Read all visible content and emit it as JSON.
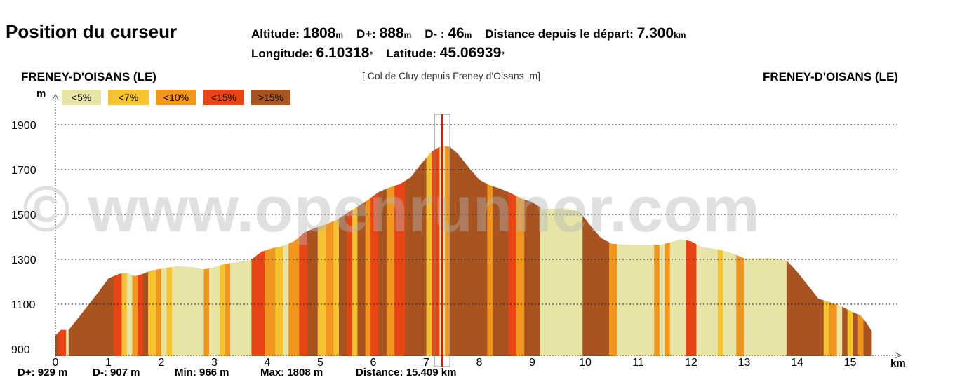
{
  "panel": {
    "title": "Position du curseur",
    "altitude_label": "Altitude:",
    "altitude_value": "1808",
    "altitude_unit": "m",
    "dplus_label": "D+:",
    "dplus_value": "888",
    "dplus_unit": "m",
    "dminus_label": "D- :",
    "dminus_value": "46",
    "dminus_unit": "m",
    "distance_label": "Distance depuis le départ:",
    "distance_value": "7.300",
    "distance_unit": "km",
    "longitude_label": "Longitude:",
    "longitude_value": "6.10318",
    "longitude_unit": "°",
    "latitude_label": "Latitude:",
    "latitude_value": "45.06939",
    "latitude_unit": "°"
  },
  "start_place": "FRENEY-D'OISANS (LE)",
  "end_place": "FRENEY-D'OISANS (LE)",
  "route_name": "[ Col de Cluy depuis Freney d'Oisans_m]",
  "watermark": "© www.openrunner.com",
  "legend": [
    {
      "label": "<5%",
      "color": "#e8e4a8"
    },
    {
      "label": "<7%",
      "color": "#f5c232"
    },
    {
      "label": "<10%",
      "color": "#f0961e"
    },
    {
      "label": "<15%",
      "color": "#e84414"
    },
    {
      "label": ">15%",
      "color": "#a85420"
    }
  ],
  "footer": {
    "dplus": "D+: 929 m",
    "dminus": "D-: 907 m",
    "min": "Min: 966 m",
    "max": "Max: 1808 m",
    "distance": "Distance: 15.409 km"
  },
  "chart_data": {
    "type": "area",
    "xlabel": "km",
    "ylabel": "m",
    "xlim": [
      0,
      15.8
    ],
    "ylim": [
      880,
      2000
    ],
    "y_ticks": [
      900,
      1100,
      1300,
      1500,
      1700,
      1900
    ],
    "x_ticks": [
      0,
      1,
      2,
      3,
      4,
      5,
      6,
      7,
      8,
      9,
      10,
      11,
      12,
      13,
      14,
      15
    ],
    "grid": "horizontal-dotted",
    "cursor_km": 7.3,
    "profile": [
      [
        0.0,
        960
      ],
      [
        0.1,
        985
      ],
      [
        0.25,
        985
      ],
      [
        0.5,
        1060
      ],
      [
        0.8,
        1150
      ],
      [
        1.0,
        1215
      ],
      [
        1.2,
        1235
      ],
      [
        1.35,
        1240
      ],
      [
        1.5,
        1225
      ],
      [
        1.65,
        1235
      ],
      [
        1.8,
        1250
      ],
      [
        2.0,
        1258
      ],
      [
        2.3,
        1270
      ],
      [
        2.6,
        1265
      ],
      [
        2.8,
        1255
      ],
      [
        3.0,
        1265
      ],
      [
        3.2,
        1280
      ],
      [
        3.5,
        1290
      ],
      [
        3.7,
        1300
      ],
      [
        3.9,
        1335
      ],
      [
        4.1,
        1350
      ],
      [
        4.3,
        1360
      ],
      [
        4.5,
        1380
      ],
      [
        4.7,
        1420
      ],
      [
        4.9,
        1440
      ],
      [
        5.1,
        1455
      ],
      [
        5.3,
        1475
      ],
      [
        5.5,
        1505
      ],
      [
        5.7,
        1535
      ],
      [
        5.9,
        1565
      ],
      [
        6.1,
        1600
      ],
      [
        6.3,
        1620
      ],
      [
        6.5,
        1635
      ],
      [
        6.7,
        1665
      ],
      [
        6.9,
        1725
      ],
      [
        7.1,
        1780
      ],
      [
        7.3,
        1808
      ],
      [
        7.45,
        1800
      ],
      [
        7.6,
        1770
      ],
      [
        7.8,
        1710
      ],
      [
        8.0,
        1655
      ],
      [
        8.2,
        1630
      ],
      [
        8.4,
        1615
      ],
      [
        8.6,
        1595
      ],
      [
        8.8,
        1570
      ],
      [
        9.0,
        1555
      ],
      [
        9.2,
        1525
      ],
      [
        9.4,
        1525
      ],
      [
        9.7,
        1525
      ],
      [
        9.9,
        1510
      ],
      [
        10.1,
        1450
      ],
      [
        10.3,
        1395
      ],
      [
        10.5,
        1370
      ],
      [
        10.8,
        1365
      ],
      [
        11.1,
        1365
      ],
      [
        11.4,
        1365
      ],
      [
        11.6,
        1375
      ],
      [
        11.8,
        1390
      ],
      [
        12.0,
        1380
      ],
      [
        12.2,
        1355
      ],
      [
        12.5,
        1345
      ],
      [
        12.8,
        1325
      ],
      [
        13.0,
        1305
      ],
      [
        13.3,
        1305
      ],
      [
        13.6,
        1305
      ],
      [
        13.8,
        1295
      ],
      [
        14.0,
        1245
      ],
      [
        14.2,
        1185
      ],
      [
        14.4,
        1125
      ],
      [
        14.6,
        1110
      ],
      [
        14.8,
        1095
      ],
      [
        15.0,
        1070
      ],
      [
        15.2,
        1050
      ],
      [
        15.3,
        1020
      ],
      [
        15.409,
        980
      ]
    ],
    "segments": [
      [
        0.0,
        0.05,
        4
      ],
      [
        0.05,
        0.2,
        3
      ],
      [
        0.2,
        0.25,
        0
      ],
      [
        0.25,
        1.1,
        4
      ],
      [
        1.1,
        1.25,
        3
      ],
      [
        1.25,
        1.35,
        1
      ],
      [
        1.35,
        1.45,
        0
      ],
      [
        1.45,
        1.55,
        2
      ],
      [
        1.55,
        1.65,
        3
      ],
      [
        1.65,
        1.75,
        4
      ],
      [
        1.75,
        1.9,
        1
      ],
      [
        1.9,
        2.0,
        2
      ],
      [
        2.0,
        2.1,
        0
      ],
      [
        2.1,
        2.2,
        1
      ],
      [
        2.2,
        2.8,
        0
      ],
      [
        2.8,
        2.9,
        2
      ],
      [
        2.9,
        3.1,
        0
      ],
      [
        3.1,
        3.2,
        1
      ],
      [
        3.2,
        3.3,
        2
      ],
      [
        3.3,
        3.7,
        0
      ],
      [
        3.7,
        3.95,
        3
      ],
      [
        3.95,
        4.15,
        2
      ],
      [
        4.15,
        4.3,
        1
      ],
      [
        4.3,
        4.4,
        0
      ],
      [
        4.4,
        4.6,
        2
      ],
      [
        4.6,
        4.75,
        3
      ],
      [
        4.75,
        4.95,
        4
      ],
      [
        4.95,
        5.1,
        1
      ],
      [
        5.1,
        5.25,
        2
      ],
      [
        5.25,
        5.35,
        1
      ],
      [
        5.35,
        5.5,
        4
      ],
      [
        5.5,
        5.6,
        3
      ],
      [
        5.6,
        5.7,
        1
      ],
      [
        5.7,
        5.85,
        4
      ],
      [
        5.85,
        5.95,
        2
      ],
      [
        5.95,
        6.1,
        3
      ],
      [
        6.1,
        6.25,
        4
      ],
      [
        6.25,
        6.4,
        2
      ],
      [
        6.4,
        6.6,
        3
      ],
      [
        6.6,
        7.0,
        4
      ],
      [
        7.0,
        7.1,
        1
      ],
      [
        7.1,
        7.25,
        3
      ],
      [
        7.25,
        7.35,
        0
      ],
      [
        7.35,
        7.45,
        2
      ],
      [
        7.45,
        8.15,
        4
      ],
      [
        8.15,
        8.25,
        2
      ],
      [
        8.25,
        8.55,
        4
      ],
      [
        8.55,
        8.7,
        3
      ],
      [
        8.7,
        8.85,
        2
      ],
      [
        8.85,
        9.15,
        4
      ],
      [
        9.15,
        9.95,
        0
      ],
      [
        9.95,
        10.45,
        4
      ],
      [
        10.45,
        10.6,
        2
      ],
      [
        10.6,
        11.3,
        0
      ],
      [
        11.3,
        11.4,
        2
      ],
      [
        11.4,
        11.5,
        0
      ],
      [
        11.5,
        11.6,
        2
      ],
      [
        11.6,
        11.9,
        0
      ],
      [
        11.9,
        12.1,
        3
      ],
      [
        12.1,
        12.5,
        0
      ],
      [
        12.5,
        12.6,
        1
      ],
      [
        12.6,
        12.85,
        0
      ],
      [
        12.85,
        13.0,
        2
      ],
      [
        13.0,
        13.8,
        0
      ],
      [
        13.8,
        14.5,
        4
      ],
      [
        14.5,
        14.6,
        1
      ],
      [
        14.6,
        14.75,
        2
      ],
      [
        14.75,
        14.85,
        0
      ],
      [
        14.85,
        14.95,
        4
      ],
      [
        14.95,
        15.05,
        1
      ],
      [
        15.05,
        15.15,
        4
      ],
      [
        15.15,
        15.25,
        2
      ],
      [
        15.25,
        15.409,
        4
      ]
    ]
  }
}
